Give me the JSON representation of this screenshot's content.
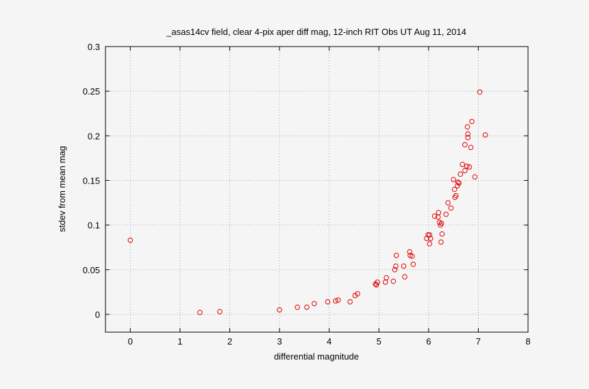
{
  "chart_data": {
    "type": "scatter",
    "title": "_asas14cv field, clear 4-pix aper diff mag,  12-inch RIT Obs UT Aug 11, 2014",
    "xlabel": "differential magnitude",
    "ylabel": "stdev from mean mag",
    "xlim": [
      -0.5,
      8
    ],
    "ylim": [
      -0.02,
      0.3
    ],
    "xticks": [
      0,
      1,
      2,
      3,
      4,
      5,
      6,
      7,
      8
    ],
    "xtick_labels": [
      "0",
      "1",
      "2",
      "3",
      "4",
      "5",
      "6",
      "7",
      "8"
    ],
    "yticks": [
      0,
      0.05,
      0.1,
      0.15,
      0.2,
      0.25,
      0.3
    ],
    "ytick_labels": [
      "0",
      "0.05",
      "0.1",
      "0.15",
      "0.2",
      "0.25",
      "0.3"
    ],
    "grid": true,
    "marker": "open-circle",
    "marker_color": "#e00000",
    "points": [
      [
        0.0,
        0.083
      ],
      [
        1.4,
        0.002
      ],
      [
        1.8,
        0.003
      ],
      [
        3.0,
        0.005
      ],
      [
        3.36,
        0.008
      ],
      [
        3.55,
        0.008
      ],
      [
        3.7,
        0.012
      ],
      [
        3.97,
        0.014
      ],
      [
        4.13,
        0.015
      ],
      [
        4.18,
        0.016
      ],
      [
        4.42,
        0.014
      ],
      [
        4.52,
        0.021
      ],
      [
        4.57,
        0.023
      ],
      [
        4.93,
        0.034
      ],
      [
        4.95,
        0.033
      ],
      [
        4.97,
        0.036
      ],
      [
        5.13,
        0.036
      ],
      [
        5.15,
        0.041
      ],
      [
        5.29,
        0.037
      ],
      [
        5.32,
        0.05
      ],
      [
        5.34,
        0.054
      ],
      [
        5.35,
        0.066
      ],
      [
        5.5,
        0.054
      ],
      [
        5.52,
        0.042
      ],
      [
        5.62,
        0.07
      ],
      [
        5.63,
        0.066
      ],
      [
        5.67,
        0.065
      ],
      [
        5.69,
        0.056
      ],
      [
        5.96,
        0.085
      ],
      [
        5.99,
        0.089
      ],
      [
        6.02,
        0.089
      ],
      [
        6.02,
        0.079
      ],
      [
        6.04,
        0.085
      ],
      [
        6.12,
        0.11
      ],
      [
        6.19,
        0.109
      ],
      [
        6.2,
        0.114
      ],
      [
        6.22,
        0.103
      ],
      [
        6.24,
        0.1
      ],
      [
        6.26,
        0.102
      ],
      [
        6.25,
        0.081
      ],
      [
        6.27,
        0.09
      ],
      [
        6.35,
        0.112
      ],
      [
        6.39,
        0.125
      ],
      [
        6.45,
        0.119
      ],
      [
        6.5,
        0.151
      ],
      [
        6.52,
        0.14
      ],
      [
        6.53,
        0.131
      ],
      [
        6.55,
        0.133
      ],
      [
        6.58,
        0.144
      ],
      [
        6.59,
        0.148
      ],
      [
        6.61,
        0.147
      ],
      [
        6.64,
        0.157
      ],
      [
        6.68,
        0.168
      ],
      [
        6.73,
        0.161
      ],
      [
        6.73,
        0.19
      ],
      [
        6.77,
        0.166
      ],
      [
        6.78,
        0.21
      ],
      [
        6.79,
        0.198
      ],
      [
        6.79,
        0.202
      ],
      [
        6.82,
        0.165
      ],
      [
        6.85,
        0.187
      ],
      [
        6.87,
        0.216
      ],
      [
        6.93,
        0.154
      ],
      [
        7.03,
        0.249
      ],
      [
        7.14,
        0.201
      ]
    ]
  }
}
